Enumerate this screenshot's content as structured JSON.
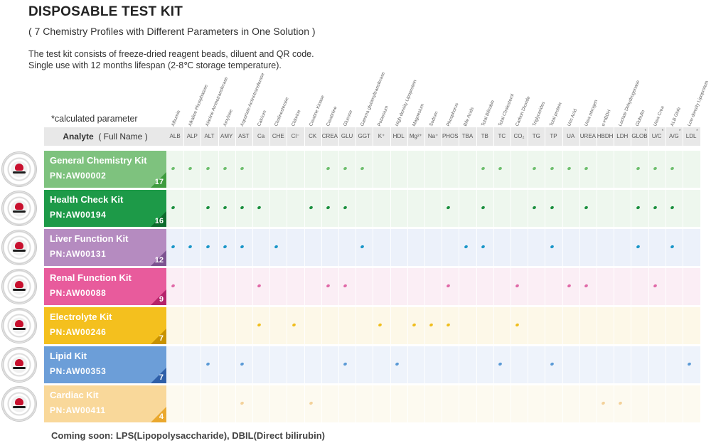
{
  "title": "DISPOSABLE TEST KIT",
  "subtitle": "( 7 Chemistry Profiles with Different Parameters in One Solution )",
  "description": [
    "The test kit consists of freeze-dried reagent beads, diluent and QR code.",
    "Single use with 12 months lifespan (2-8℃ storage temperature)."
  ],
  "calc_note": "*calculated parameter",
  "analyte_header": "Analyte",
  "analyte_header_sub": "( Full Name )",
  "analytes": [
    {
      "abbr": "ALB",
      "full": "Albumin"
    },
    {
      "abbr": "ALP",
      "full": "Alkaline Phosphatase"
    },
    {
      "abbr": "ALT",
      "full": "Alanine Aminotransferase"
    },
    {
      "abbr": "AMY",
      "full": "Amylase"
    },
    {
      "abbr": "AST",
      "full": "Aspartate Aminotransferase"
    },
    {
      "abbr": "Ca",
      "full": "Calcium"
    },
    {
      "abbr": "CHE",
      "full": "Cholinesterase"
    },
    {
      "abbr": "Cl⁻",
      "full": "Chlorine"
    },
    {
      "abbr": "CK",
      "full": "Creatine Kinase"
    },
    {
      "abbr": "CREA",
      "full": "Creatinine"
    },
    {
      "abbr": "GLU",
      "full": "Glucose"
    },
    {
      "abbr": "GGT",
      "full": "Gamma glutamyltransferase"
    },
    {
      "abbr": "K⁺",
      "full": "Potassium"
    },
    {
      "abbr": "HDL",
      "full": "High density Lipoprotein"
    },
    {
      "abbr": "Mg²⁺",
      "full": "Magnesium"
    },
    {
      "abbr": "Na⁺",
      "full": "Sodium"
    },
    {
      "abbr": "PHOS",
      "full": "Phosphorus"
    },
    {
      "abbr": "TBA",
      "full": "Bile Acids"
    },
    {
      "abbr": "TB",
      "full": "Total Bilirubin"
    },
    {
      "abbr": "TC",
      "full": "Total Cholesterol"
    },
    {
      "abbr": "CO₂",
      "full": "Carbon Dioxide"
    },
    {
      "abbr": "TG",
      "full": "Triglycerides"
    },
    {
      "abbr": "TP",
      "full": "Total protein"
    },
    {
      "abbr": "UA",
      "full": "Uric Acid"
    },
    {
      "abbr": "UREA",
      "full": "Urea nitrogen"
    },
    {
      "abbr": "HBDH",
      "full": "α-HBDH"
    },
    {
      "abbr": "LDH",
      "full": "Lactate Dehydrogenase"
    },
    {
      "abbr": "GLOB",
      "full": "Globulin",
      "calc": true
    },
    {
      "abbr": "U/C",
      "full": "Urea Crea",
      "calc": true
    },
    {
      "abbr": "A/G",
      "full": "ALB Glob",
      "calc": true
    },
    {
      "abbr": "LDL",
      "full": "Low density Lipoprotein",
      "calc": true
    }
  ],
  "kits": [
    {
      "name": "General Chemistry Kit",
      "pn": "PN:AW00002",
      "count": "17",
      "color": "#7ec27e",
      "dark": "#3d9b3d",
      "band": "#eef7ee",
      "dot": "#6fbf6f",
      "dots": [
        "ALB",
        "ALP",
        "ALT",
        "AMY",
        "AST",
        "CREA",
        "GLU",
        "GGT",
        "TB",
        "TC",
        "TG",
        "TP",
        "UA",
        "UREA",
        "GLOB",
        "U/C",
        "A/G"
      ]
    },
    {
      "name": "Health Check Kit",
      "pn": "PN:AW00194",
      "count": "16",
      "color": "#1d9a48",
      "dark": "#0c6b2c",
      "band": "#eef7ee",
      "dot": "#1b8f3f",
      "dots": [
        "ALB",
        "ALT",
        "AMY",
        "AST",
        "Ca",
        "CK",
        "CREA",
        "GLU",
        "PHOS",
        "TB",
        "TG",
        "TP",
        "UREA",
        "GLOB",
        "U/C",
        "A/G"
      ]
    },
    {
      "name": "Liver Function Kit",
      "pn": "PN:AW00131",
      "count": "12",
      "color": "#b58bc0",
      "dark": "#7d5290",
      "band": "#ecf1fa",
      "dot": "#1a96c8",
      "dots": [
        "ALB",
        "ALP",
        "ALT",
        "AMY",
        "AST",
        "CHE",
        "GGT",
        "TBA",
        "TB",
        "TP",
        "GLOB",
        "A/G"
      ]
    },
    {
      "name": "Renal Function Kit",
      "pn": "PN:AW00088",
      "count": "9",
      "color": "#e85b9c",
      "dark": "#b5236a",
      "band": "#fbeef5",
      "dot": "#e06aa8",
      "dots": [
        "ALB",
        "Ca",
        "CREA",
        "GLU",
        "PHOS",
        "CO₂",
        "UA",
        "UREA",
        "U/C"
      ]
    },
    {
      "name": "Electrolyte Kit",
      "pn": "PN:AW00246",
      "count": "7",
      "color": "#f4c01e",
      "dark": "#c89200",
      "band": "#fdf8e8",
      "dot": "#f0be1e",
      "dots": [
        "Ca",
        "Cl⁻",
        "K⁺",
        "Mg²⁺",
        "Na⁺",
        "PHOS",
        "CO₂"
      ]
    },
    {
      "name": "Lipid Kit",
      "pn": "PN:AW00353",
      "count": "7",
      "color": "#6c9ed8",
      "dark": "#2f5fa8",
      "band": "#eef3fb",
      "dot": "#5b9ad6",
      "dots": [
        "ALT",
        "AST",
        "GLU",
        "HDL",
        "TC",
        "TP",
        "LDL"
      ]
    },
    {
      "name": "Cardiac Kit",
      "pn": "PN:AW00411",
      "count": "4",
      "color": "#f9d89a",
      "dark": "#eaa82e",
      "band": "#fdfaf0",
      "dot": "#f3d19a",
      "dots": [
        "AST",
        "CK",
        "HBDH",
        "LDH"
      ]
    }
  ],
  "coming_soon": "Coming soon:  LPS(Lipopolysaccharide), DBIL(Direct bilirubin)"
}
